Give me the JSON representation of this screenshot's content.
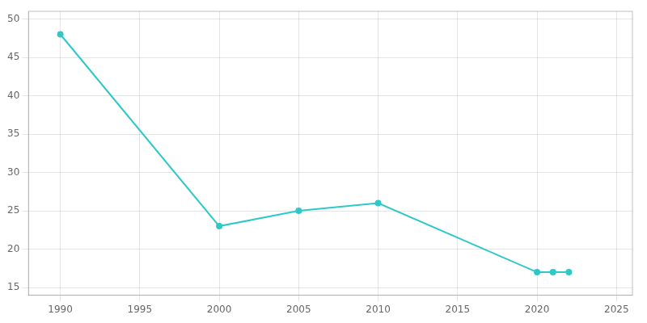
{
  "chart_data": {
    "type": "line",
    "x": [
      1990,
      2000,
      2005,
      2010,
      2020,
      2021,
      2022
    ],
    "values": [
      48,
      23,
      25,
      26,
      17,
      17,
      17
    ],
    "color": "#2ec8c8",
    "marker": "circle",
    "xlim": [
      1988,
      2026
    ],
    "ylim": [
      14,
      51
    ],
    "xticks": [
      1990,
      1995,
      2000,
      2005,
      2010,
      2015,
      2020,
      2025
    ],
    "yticks": [
      15,
      20,
      25,
      30,
      35,
      40,
      45,
      50
    ],
    "grid": true
  }
}
